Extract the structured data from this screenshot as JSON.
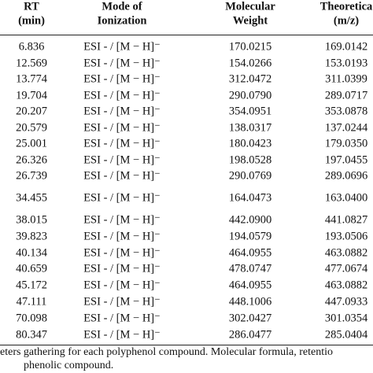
{
  "table": {
    "header": [
      [
        "RT",
        "(min)"
      ],
      [
        "Mode of",
        "Ionization"
      ],
      [
        "Molecular",
        "Weight"
      ],
      [
        "Theoretica",
        "(m/z)"
      ]
    ],
    "rows": [
      [
        "6.836",
        "ESI - / [M − H]⁻",
        "170.0215",
        "169.0142"
      ],
      [
        "12.569",
        "ESI - / [M − H]⁻",
        "154.0266",
        "153.0193"
      ],
      [
        "13.774",
        "ESI - / [M − H]⁻",
        "312.0472",
        "311.0399"
      ],
      [
        "19.704",
        "ESI - / [M − H]⁻",
        "290.0790",
        "289.0717"
      ],
      [
        "20.207",
        "ESI - / [M − H]⁻",
        "354.0951",
        "353.0878"
      ],
      [
        "20.579",
        "ESI - / [M − H]⁻",
        "138.0317",
        "137.0244"
      ],
      [
        "25.001",
        "ESI - / [M − H]⁻",
        "180.0423",
        "179.0350"
      ],
      [
        "26.326",
        "ESI - / [M − H]⁻",
        "198.0528",
        "197.0455"
      ],
      [
        "26.739",
        "ESI - / [M − H]⁻",
        "290.0769",
        "289.0696"
      ],
      [
        "34.455",
        "ESI - / [M − H]⁻",
        "164.0473",
        "163.0400"
      ],
      [
        "38.015",
        "ESI - / [M − H]⁻",
        "442.0900",
        "441.0827"
      ],
      [
        "39.823",
        "ESI - / [M − H]⁻",
        "194.0579",
        "193.0506"
      ],
      [
        "40.134",
        "ESI - / [M − H]⁻",
        "464.0955",
        "463.0882"
      ],
      [
        "40.659",
        "ESI - / [M − H]⁻",
        "478.0747",
        "477.0674"
      ],
      [
        "45.172",
        "ESI - / [M − H]⁻",
        "464.0955",
        "463.0882"
      ],
      [
        "47.111",
        "ESI - / [M − H]⁻",
        "448.1006",
        "447.0933"
      ],
      [
        "70.098",
        "ESI - / [M − H]⁻",
        "302.0427",
        "301.0354"
      ],
      [
        "80.347",
        "ESI - / [M − H]⁻",
        "286.0477",
        "285.0404"
      ]
    ]
  },
  "caption": [
    "eters gathering for each polyphenol compound. Molecular formula, retentio",
    "phenolic compound."
  ]
}
